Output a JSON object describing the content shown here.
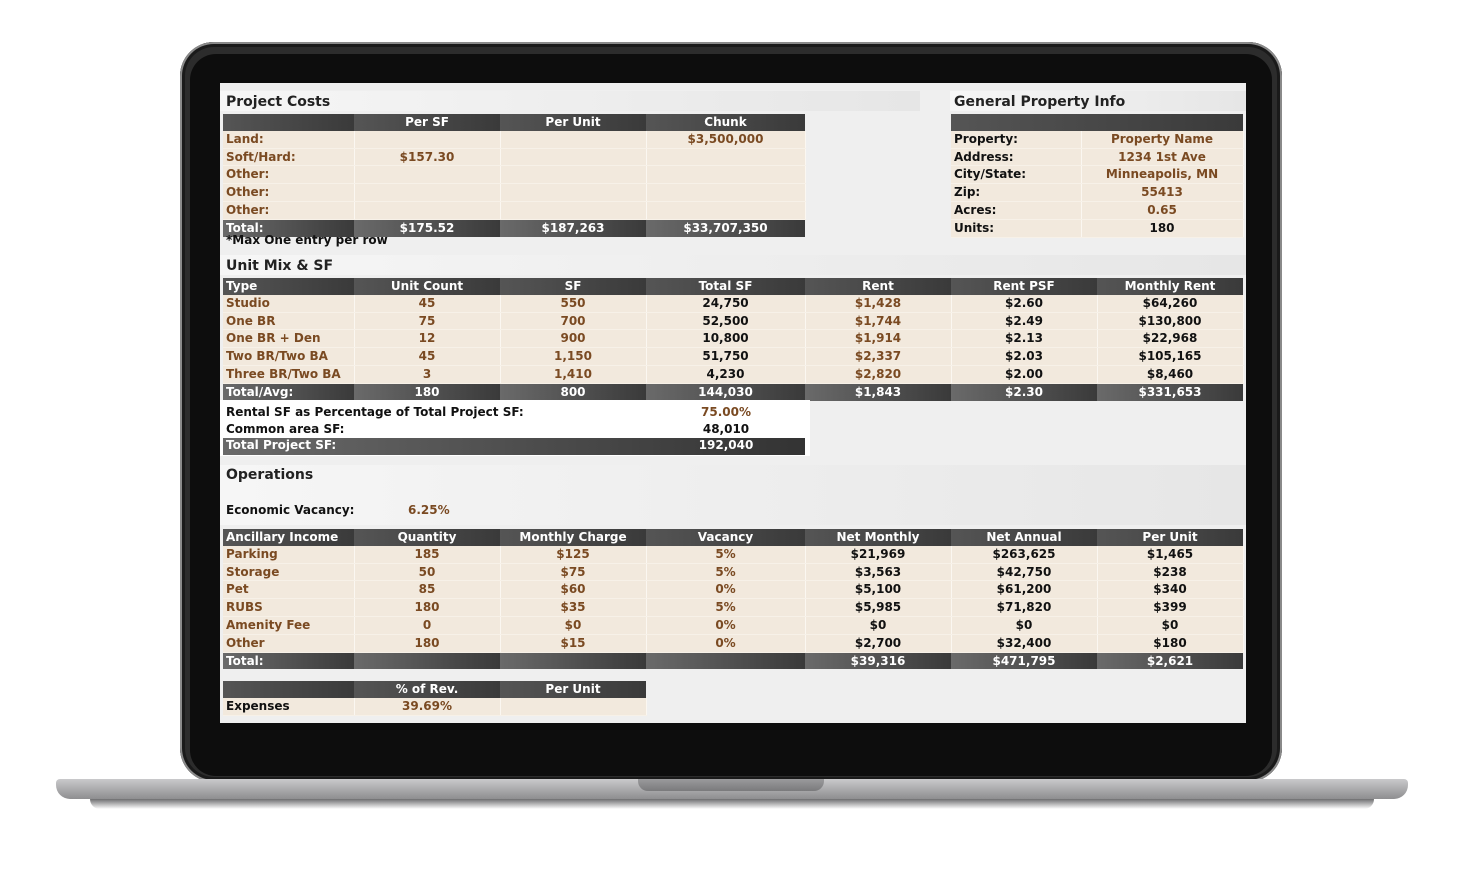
{
  "project_costs": {
    "title": "Project Costs",
    "headers": [
      "",
      "Per SF",
      "Per Unit",
      "Chunk"
    ],
    "rows": [
      [
        "Land:",
        "",
        "",
        "$3,500,000"
      ],
      [
        "Soft/Hard:",
        "$157.30",
        "",
        ""
      ],
      [
        "Other:",
        "",
        "",
        ""
      ],
      [
        "Other:",
        "",
        "",
        ""
      ],
      [
        "Other:",
        "",
        "",
        ""
      ]
    ],
    "total": [
      "Total:",
      "$175.52",
      "$187,263",
      "$33,707,350"
    ],
    "note": "*Max One entry per row"
  },
  "general_info": {
    "title": "General Property Info",
    "rows": [
      [
        "Property:",
        "Property Name"
      ],
      [
        "Address:",
        "1234 1st Ave"
      ],
      [
        "City/State:",
        "Minneapolis, MN"
      ],
      [
        "Zip:",
        "55413"
      ],
      [
        "Acres:",
        "0.65"
      ],
      [
        "Units:",
        "180"
      ]
    ]
  },
  "unit_mix": {
    "title": "Unit Mix & SF",
    "headers": [
      "Type",
      "Unit Count",
      "SF",
      "Total SF",
      "Rent",
      "Rent PSF",
      "Monthly Rent"
    ],
    "rows": [
      [
        "Studio",
        "45",
        "550",
        "24,750",
        "$1,428",
        "$2.60",
        "$64,260"
      ],
      [
        "One BR",
        "75",
        "700",
        "52,500",
        "$1,744",
        "$2.49",
        "$130,800"
      ],
      [
        "One BR + Den",
        "12",
        "900",
        "10,800",
        "$1,914",
        "$2.13",
        "$22,968"
      ],
      [
        "Two BR/Two BA",
        "45",
        "1,150",
        "51,750",
        "$2,337",
        "$2.03",
        "$105,165"
      ],
      [
        "Three BR/Two BA",
        "3",
        "1,410",
        "4,230",
        "$2,820",
        "$2.00",
        "$8,460"
      ]
    ],
    "total": [
      "Total/Avg:",
      "180",
      "800",
      "144,030",
      "$1,843",
      "$2.30",
      "$331,653"
    ]
  },
  "sf_summary": {
    "rental_pct_label": "Rental SF as Percentage of Total Project SF:",
    "rental_pct_value": "75.00%",
    "common_label": "Common area SF:",
    "common_value": "48,010",
    "total_label": "Total Project SF:",
    "total_value": "192,040"
  },
  "operations": {
    "title": "Operations",
    "vacancy_label": "Economic Vacancy:",
    "vacancy_value": "6.25%",
    "headers": [
      "Ancillary Income",
      "Quantity",
      "Monthly Charge",
      "Vacancy",
      "Net Monthly",
      "Net Annual",
      "Per Unit"
    ],
    "rows": [
      [
        "Parking",
        "185",
        "$125",
        "5%",
        "$21,969",
        "$263,625",
        "$1,465"
      ],
      [
        "Storage",
        "50",
        "$75",
        "5%",
        "$3,563",
        "$42,750",
        "$238"
      ],
      [
        "Pet",
        "85",
        "$60",
        "0%",
        "$5,100",
        "$61,200",
        "$340"
      ],
      [
        "RUBS",
        "180",
        "$35",
        "5%",
        "$5,985",
        "$71,820",
        "$399"
      ],
      [
        "Amenity Fee",
        "0",
        "$0",
        "0%",
        "$0",
        "$0",
        "$0"
      ],
      [
        "Other",
        "180",
        "$15",
        "0%",
        "$2,700",
        "$32,400",
        "$180"
      ]
    ],
    "total": [
      "Total:",
      "",
      "",
      "",
      "$39,316",
      "$471,795",
      "$2,621"
    ]
  },
  "expenses": {
    "headers": [
      "",
      "% of Rev.",
      "Per Unit"
    ],
    "row": [
      "Expenses",
      "39.69%",
      ""
    ]
  }
}
